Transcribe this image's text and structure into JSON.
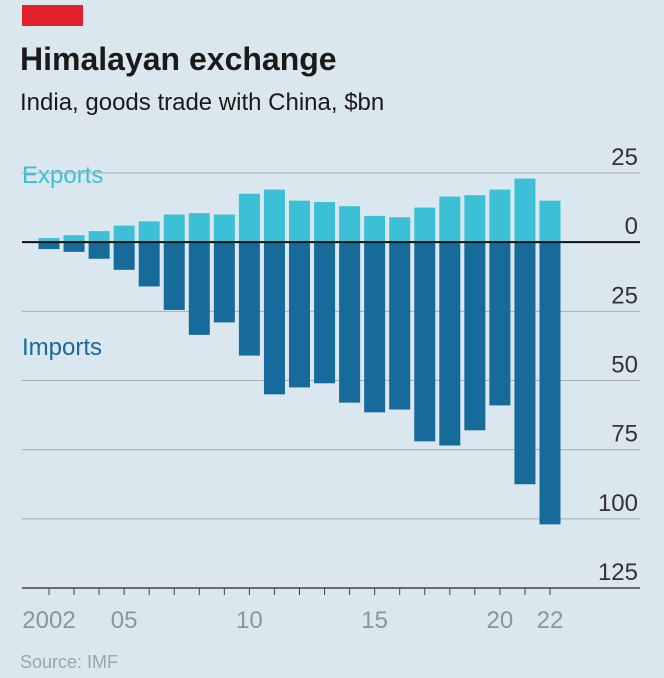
{
  "chart_data": {
    "type": "bar",
    "title": "Himalayan exchange",
    "subtitle": "India, goods trade with China, $bn",
    "source": "Source: IMF",
    "categories": [
      "2002",
      null,
      null,
      "05",
      null,
      null,
      null,
      null,
      "10",
      null,
      null,
      null,
      null,
      "15",
      null,
      null,
      null,
      null,
      "20",
      null,
      "22"
    ],
    "series": [
      {
        "name": "Exports",
        "color": "#3cc0d6",
        "values": [
          1.5,
          2.5,
          4,
          6,
          7.5,
          10,
          10.5,
          10,
          17.5,
          19,
          15,
          14.5,
          13,
          9.5,
          9,
          12.5,
          16.5,
          17,
          19,
          23,
          15
        ]
      },
      {
        "name": "Imports",
        "color": "#176b9a",
        "values": [
          -2.5,
          -3.5,
          -6,
          -10,
          -16,
          -24.5,
          -33.5,
          -29,
          -41,
          -55,
          -52.5,
          -51,
          -58,
          -61.5,
          -60.5,
          -72,
          -73.5,
          -68,
          -59,
          -87.5,
          -102
        ]
      }
    ],
    "ylim": [
      -125,
      25
    ],
    "yticks": [
      25,
      0,
      {
        "value": -25,
        "label": "25"
      },
      {
        "value": -50,
        "label": "50"
      },
      {
        "value": -75,
        "label": "75"
      },
      {
        "value": -100,
        "label": "100"
      },
      {
        "value": -125,
        "label": "125"
      }
    ],
    "grid": true
  }
}
